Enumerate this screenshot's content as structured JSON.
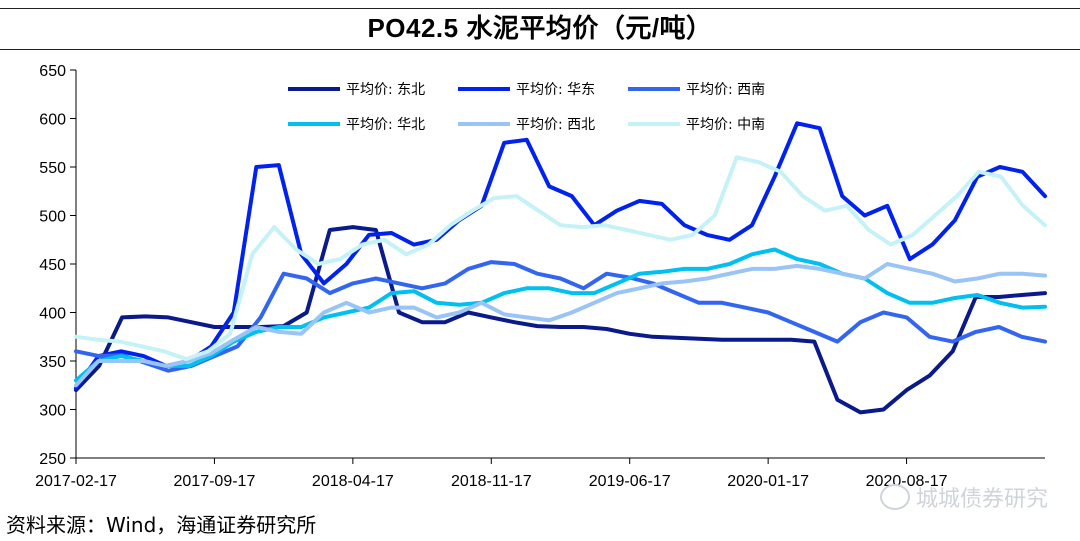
{
  "page": {
    "source": "资料来源：Wind，海通证券研究所",
    "watermark": "城城债券研究"
  },
  "chart_data": {
    "type": "line",
    "title": "PO42.5 水泥平均价（元/吨）",
    "xlabel": "",
    "ylabel": "",
    "ylim": [
      250,
      650
    ],
    "yticks": [
      250,
      300,
      350,
      400,
      450,
      500,
      550,
      600,
      650
    ],
    "x_ticks": [
      "2017-02-17",
      "2017-09-17",
      "2018-04-17",
      "2018-11-17",
      "2019-06-17",
      "2020-01-17",
      "2020-08-17"
    ],
    "x_domain": [
      0,
      48
    ],
    "legend_position": "top-right",
    "series": [
      {
        "name": "平均价: 东北",
        "color": "#0a1a8a",
        "width": 4,
        "values": [
          320,
          345,
          395,
          396,
          395,
          390,
          385,
          385,
          385,
          386,
          400,
          485,
          488,
          485,
          400,
          390,
          390,
          400,
          395,
          390,
          386,
          385,
          385,
          383,
          378,
          375,
          374,
          373,
          372,
          372,
          372,
          372,
          370,
          310,
          297,
          300,
          320,
          335,
          360,
          416,
          416,
          418,
          420
        ]
      },
      {
        "name": "平均价: 华东",
        "color": "#0022ee",
        "width": 4,
        "values": [
          322,
          355,
          360,
          355,
          345,
          350,
          365,
          400,
          550,
          552,
          460,
          430,
          450,
          480,
          482,
          470,
          475,
          495,
          510,
          575,
          578,
          530,
          520,
          490,
          505,
          515,
          512,
          490,
          480,
          475,
          490,
          540,
          595,
          590,
          520,
          500,
          510,
          455,
          470,
          495,
          540,
          550,
          545,
          520
        ]
      },
      {
        "name": "平均价: 西南",
        "color": "#3366f0",
        "width": 4,
        "values": [
          360,
          355,
          356,
          348,
          340,
          345,
          355,
          365,
          395,
          440,
          435,
          420,
          430,
          435,
          430,
          425,
          430,
          445,
          452,
          450,
          440,
          435,
          425,
          440,
          436,
          430,
          420,
          410,
          410,
          405,
          400,
          390,
          380,
          370,
          390,
          400,
          395,
          375,
          370,
          380,
          385,
          375,
          370
        ]
      },
      {
        "name": "平均价: 华北",
        "color": "#00c0f0",
        "width": 4,
        "values": [
          330,
          350,
          355,
          350,
          345,
          345,
          355,
          370,
          380,
          385,
          385,
          395,
          400,
          405,
          420,
          422,
          410,
          408,
          410,
          420,
          425,
          425,
          420,
          420,
          430,
          440,
          442,
          445,
          445,
          450,
          460,
          465,
          455,
          450,
          440,
          435,
          420,
          410,
          410,
          415,
          418,
          410,
          405,
          406
        ]
      },
      {
        "name": "平均价: 西北",
        "color": "#99c4f5",
        "width": 4,
        "values": [
          325,
          350,
          350,
          350,
          345,
          350,
          358,
          372,
          385,
          380,
          378,
          400,
          410,
          400,
          405,
          405,
          395,
          400,
          410,
          398,
          395,
          392,
          400,
          410,
          420,
          425,
          430,
          432,
          435,
          440,
          445,
          445,
          448,
          445,
          440,
          435,
          450,
          445,
          440,
          432,
          435,
          440,
          440,
          438
        ]
      },
      {
        "name": "平均价: 中南",
        "color": "#c4f2f7",
        "width": 4,
        "values": [
          375,
          372,
          370,
          365,
          360,
          352,
          360,
          378,
          460,
          488,
          465,
          450,
          455,
          470,
          475,
          460,
          470,
          490,
          505,
          518,
          520,
          505,
          490,
          488,
          490,
          485,
          480,
          475,
          480,
          500,
          560,
          555,
          545,
          520,
          505,
          510,
          485,
          470,
          480,
          500,
          520,
          545,
          540,
          510,
          490
        ]
      }
    ]
  }
}
